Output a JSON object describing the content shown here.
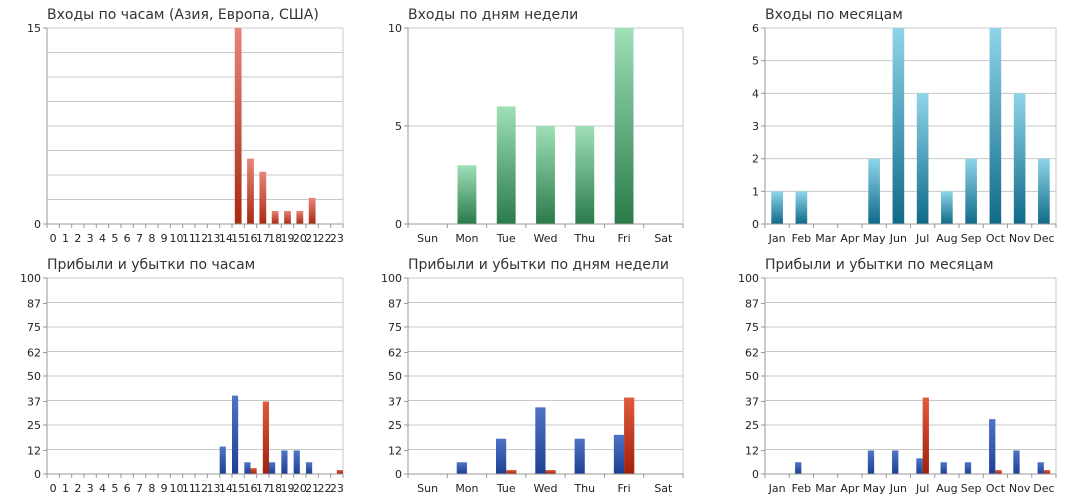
{
  "chart_data": [
    {
      "type": "bar",
      "title": "Входы по часам (Азия, Европа, США)",
      "categories": [
        "0",
        "1",
        "2",
        "3",
        "4",
        "5",
        "6",
        "7",
        "8",
        "9",
        "10",
        "11",
        "12",
        "13",
        "14",
        "15",
        "16",
        "17",
        "18",
        "19",
        "20",
        "21",
        "22",
        "23"
      ],
      "series": [
        {
          "values": [
            0,
            0,
            0,
            0,
            0,
            0,
            0,
            0,
            0,
            0,
            0,
            0,
            0,
            0,
            0,
            15,
            5,
            4,
            1,
            1,
            1,
            2,
            0,
            0
          ],
          "colors": {
            "top": "#e8857a",
            "bottom": "#a92a12"
          }
        }
      ],
      "ylim": [
        0,
        15
      ],
      "yticks": [
        0,
        15
      ],
      "grid": true
    },
    {
      "type": "bar",
      "title": "Входы по дням недели",
      "categories": [
        "Sun",
        "Mon",
        "Tue",
        "Wed",
        "Thu",
        "Fri",
        "Sat"
      ],
      "series": [
        {
          "values": [
            0,
            3,
            6,
            5,
            5,
            10,
            0
          ],
          "colors": {
            "top": "#9fe0b9",
            "bottom": "#2a7a4a"
          }
        }
      ],
      "ylim": [
        0,
        10
      ],
      "yticks": [
        0,
        5,
        10
      ],
      "grid": true
    },
    {
      "type": "bar",
      "title": "Входы по месяцам",
      "categories": [
        "Jan",
        "Feb",
        "Mar",
        "Apr",
        "May",
        "Jun",
        "Jul",
        "Aug",
        "Sep",
        "Oct",
        "Nov",
        "Dec"
      ],
      "series": [
        {
          "values": [
            1,
            1,
            0,
            0,
            2,
            6,
            4,
            1,
            2,
            6,
            4,
            2
          ],
          "colors": {
            "top": "#8fd5ea",
            "bottom": "#0f6a88"
          }
        }
      ],
      "ylim": [
        0,
        6
      ],
      "yticks": [
        0,
        1,
        2,
        3,
        4,
        5,
        6
      ],
      "grid": true
    },
    {
      "type": "bar",
      "title": "Прибыли и убытки по часам",
      "categories": [
        "0",
        "1",
        "2",
        "3",
        "4",
        "5",
        "6",
        "7",
        "8",
        "9",
        "10",
        "11",
        "12",
        "13",
        "14",
        "15",
        "16",
        "17",
        "18",
        "19",
        "20",
        "21",
        "22",
        "23"
      ],
      "series": [
        {
          "values": [
            0,
            0,
            0,
            0,
            0,
            0,
            0,
            0,
            0,
            0,
            0,
            0,
            0,
            0,
            14,
            40,
            6,
            0,
            6,
            12,
            12,
            6,
            0,
            0
          ],
          "colors": {
            "top": "#4f74c6",
            "bottom": "#1c3f92"
          }
        },
        {
          "values": [
            0,
            0,
            0,
            0,
            0,
            0,
            0,
            0,
            0,
            0,
            0,
            0,
            0,
            0,
            0,
            0,
            3,
            37,
            0,
            0,
            0,
            0,
            0,
            2
          ],
          "colors": {
            "top": "#e05a3c",
            "bottom": "#a0200c"
          }
        }
      ],
      "ylim": [
        0,
        100
      ],
      "yticks": [
        0,
        12,
        25,
        37,
        50,
        62,
        75,
        87,
        100
      ],
      "grid": true
    },
    {
      "type": "bar",
      "title": "Прибыли и убытки по дням недели",
      "categories": [
        "Sun",
        "Mon",
        "Tue",
        "Wed",
        "Thu",
        "Fri",
        "Sat"
      ],
      "series": [
        {
          "values": [
            0,
            6,
            18,
            34,
            18,
            20,
            0
          ],
          "colors": {
            "top": "#4f74c6",
            "bottom": "#1c3f92"
          }
        },
        {
          "values": [
            0,
            0,
            2,
            2,
            0,
            39,
            0
          ],
          "colors": {
            "top": "#e05a3c",
            "bottom": "#a0200c"
          }
        }
      ],
      "ylim": [
        0,
        100
      ],
      "yticks": [
        0,
        12,
        25,
        37,
        50,
        62,
        75,
        87,
        100
      ],
      "grid": true
    },
    {
      "type": "bar",
      "title": "Прибыли и убытки по месяцам",
      "categories": [
        "Jan",
        "Feb",
        "Mar",
        "Apr",
        "May",
        "Jun",
        "Jul",
        "Aug",
        "Sep",
        "Oct",
        "Nov",
        "Dec"
      ],
      "series": [
        {
          "values": [
            0,
            6,
            0,
            0,
            12,
            12,
            8,
            6,
            6,
            28,
            12,
            6
          ],
          "colors": {
            "top": "#4f74c6",
            "bottom": "#1c3f92"
          }
        },
        {
          "values": [
            0,
            0,
            0,
            0,
            0,
            0,
            39,
            0,
            0,
            2,
            0,
            2
          ],
          "colors": {
            "top": "#e05a3c",
            "bottom": "#a0200c"
          }
        }
      ],
      "ylim": [
        0,
        100
      ],
      "yticks": [
        0,
        12,
        25,
        37,
        50,
        62,
        75,
        87,
        100
      ],
      "grid": true
    }
  ]
}
